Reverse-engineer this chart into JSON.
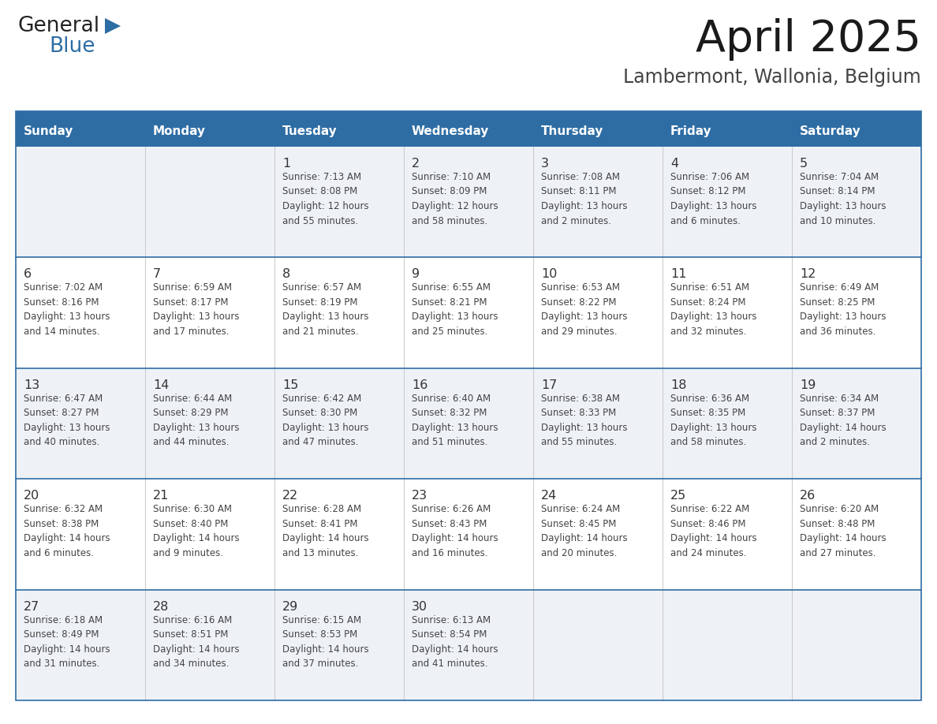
{
  "title": "April 2025",
  "subtitle": "Lambermont, Wallonia, Belgium",
  "header_bg": "#2E6DA4",
  "header_text_color": "#FFFFFF",
  "row_bg_light": "#EEF2F7",
  "row_bg_white": "#FFFFFF",
  "divider_color": "#2E6DA4",
  "text_color": "#444444",
  "day_num_color": "#333333",
  "days_of_week": [
    "Sunday",
    "Monday",
    "Tuesday",
    "Wednesday",
    "Thursday",
    "Friday",
    "Saturday"
  ],
  "calendar": [
    [
      {
        "day": "",
        "info": ""
      },
      {
        "day": "",
        "info": ""
      },
      {
        "day": "1",
        "info": "Sunrise: 7:13 AM\nSunset: 8:08 PM\nDaylight: 12 hours\nand 55 minutes."
      },
      {
        "day": "2",
        "info": "Sunrise: 7:10 AM\nSunset: 8:09 PM\nDaylight: 12 hours\nand 58 minutes."
      },
      {
        "day": "3",
        "info": "Sunrise: 7:08 AM\nSunset: 8:11 PM\nDaylight: 13 hours\nand 2 minutes."
      },
      {
        "day": "4",
        "info": "Sunrise: 7:06 AM\nSunset: 8:12 PM\nDaylight: 13 hours\nand 6 minutes."
      },
      {
        "day": "5",
        "info": "Sunrise: 7:04 AM\nSunset: 8:14 PM\nDaylight: 13 hours\nand 10 minutes."
      }
    ],
    [
      {
        "day": "6",
        "info": "Sunrise: 7:02 AM\nSunset: 8:16 PM\nDaylight: 13 hours\nand 14 minutes."
      },
      {
        "day": "7",
        "info": "Sunrise: 6:59 AM\nSunset: 8:17 PM\nDaylight: 13 hours\nand 17 minutes."
      },
      {
        "day": "8",
        "info": "Sunrise: 6:57 AM\nSunset: 8:19 PM\nDaylight: 13 hours\nand 21 minutes."
      },
      {
        "day": "9",
        "info": "Sunrise: 6:55 AM\nSunset: 8:21 PM\nDaylight: 13 hours\nand 25 minutes."
      },
      {
        "day": "10",
        "info": "Sunrise: 6:53 AM\nSunset: 8:22 PM\nDaylight: 13 hours\nand 29 minutes."
      },
      {
        "day": "11",
        "info": "Sunrise: 6:51 AM\nSunset: 8:24 PM\nDaylight: 13 hours\nand 32 minutes."
      },
      {
        "day": "12",
        "info": "Sunrise: 6:49 AM\nSunset: 8:25 PM\nDaylight: 13 hours\nand 36 minutes."
      }
    ],
    [
      {
        "day": "13",
        "info": "Sunrise: 6:47 AM\nSunset: 8:27 PM\nDaylight: 13 hours\nand 40 minutes."
      },
      {
        "day": "14",
        "info": "Sunrise: 6:44 AM\nSunset: 8:29 PM\nDaylight: 13 hours\nand 44 minutes."
      },
      {
        "day": "15",
        "info": "Sunrise: 6:42 AM\nSunset: 8:30 PM\nDaylight: 13 hours\nand 47 minutes."
      },
      {
        "day": "16",
        "info": "Sunrise: 6:40 AM\nSunset: 8:32 PM\nDaylight: 13 hours\nand 51 minutes."
      },
      {
        "day": "17",
        "info": "Sunrise: 6:38 AM\nSunset: 8:33 PM\nDaylight: 13 hours\nand 55 minutes."
      },
      {
        "day": "18",
        "info": "Sunrise: 6:36 AM\nSunset: 8:35 PM\nDaylight: 13 hours\nand 58 minutes."
      },
      {
        "day": "19",
        "info": "Sunrise: 6:34 AM\nSunset: 8:37 PM\nDaylight: 14 hours\nand 2 minutes."
      }
    ],
    [
      {
        "day": "20",
        "info": "Sunrise: 6:32 AM\nSunset: 8:38 PM\nDaylight: 14 hours\nand 6 minutes."
      },
      {
        "day": "21",
        "info": "Sunrise: 6:30 AM\nSunset: 8:40 PM\nDaylight: 14 hours\nand 9 minutes."
      },
      {
        "day": "22",
        "info": "Sunrise: 6:28 AM\nSunset: 8:41 PM\nDaylight: 14 hours\nand 13 minutes."
      },
      {
        "day": "23",
        "info": "Sunrise: 6:26 AM\nSunset: 8:43 PM\nDaylight: 14 hours\nand 16 minutes."
      },
      {
        "day": "24",
        "info": "Sunrise: 6:24 AM\nSunset: 8:45 PM\nDaylight: 14 hours\nand 20 minutes."
      },
      {
        "day": "25",
        "info": "Sunrise: 6:22 AM\nSunset: 8:46 PM\nDaylight: 14 hours\nand 24 minutes."
      },
      {
        "day": "26",
        "info": "Sunrise: 6:20 AM\nSunset: 8:48 PM\nDaylight: 14 hours\nand 27 minutes."
      }
    ],
    [
      {
        "day": "27",
        "info": "Sunrise: 6:18 AM\nSunset: 8:49 PM\nDaylight: 14 hours\nand 31 minutes."
      },
      {
        "day": "28",
        "info": "Sunrise: 6:16 AM\nSunset: 8:51 PM\nDaylight: 14 hours\nand 34 minutes."
      },
      {
        "day": "29",
        "info": "Sunrise: 6:15 AM\nSunset: 8:53 PM\nDaylight: 14 hours\nand 37 minutes."
      },
      {
        "day": "30",
        "info": "Sunrise: 6:13 AM\nSunset: 8:54 PM\nDaylight: 14 hours\nand 41 minutes."
      },
      {
        "day": "",
        "info": ""
      },
      {
        "day": "",
        "info": ""
      },
      {
        "day": "",
        "info": ""
      }
    ]
  ],
  "logo_general_color": "#222222",
  "logo_blue_color": "#2E6DA4",
  "logo_triangle_color": "#2E6DA4"
}
